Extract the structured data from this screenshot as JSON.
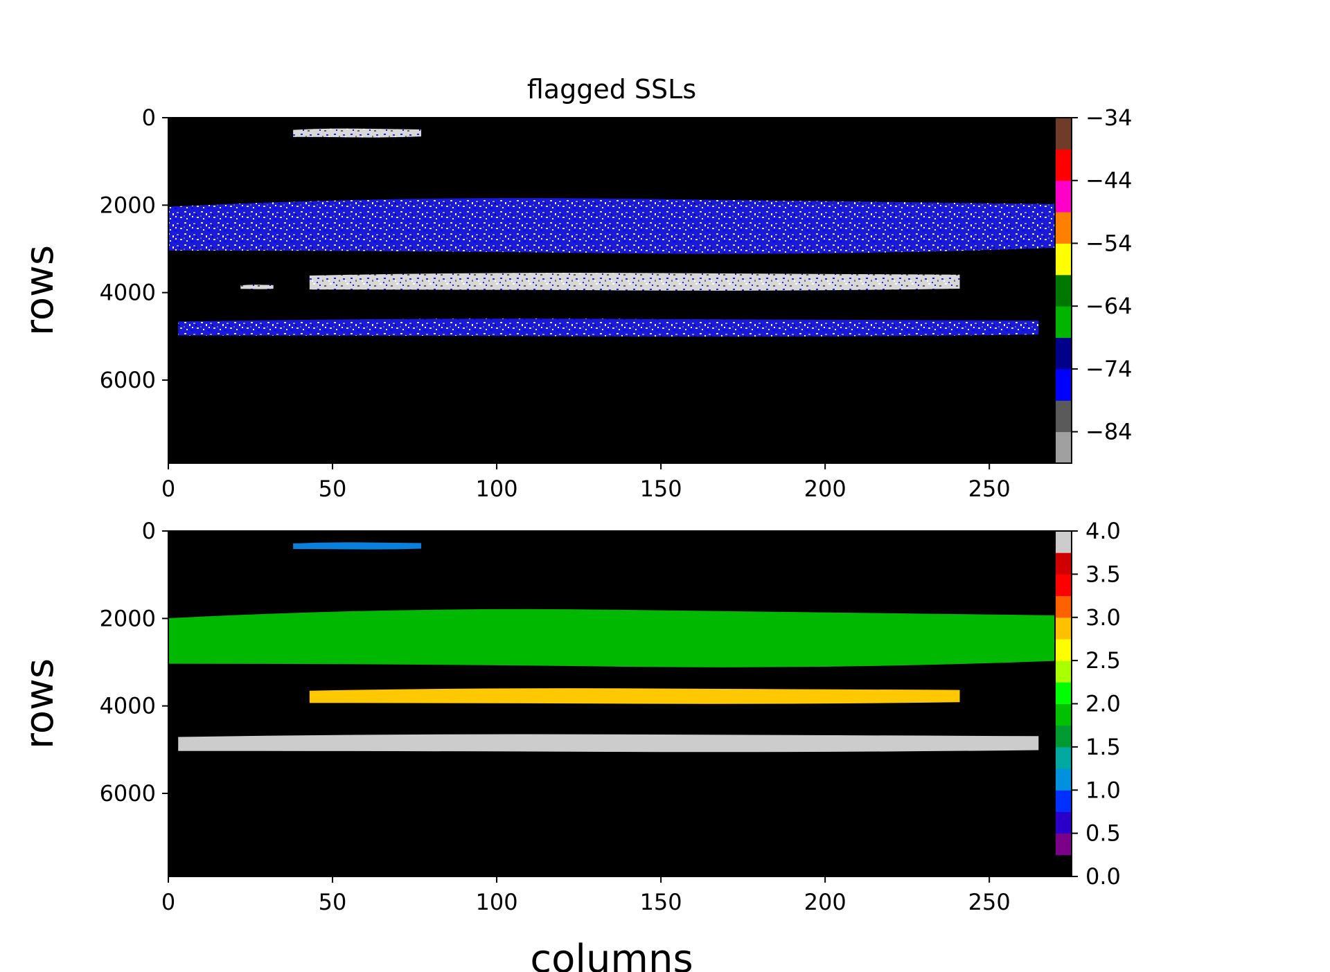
{
  "chart_data": [
    {
      "type": "heatmap",
      "title": "flagged SSLs",
      "xlabel": "",
      "ylabel": "rows",
      "xlim": [
        0,
        270
      ],
      "ylim": [
        7900,
        0
      ],
      "xticks": [
        "0",
        "50",
        "100",
        "150",
        "200",
        "250"
      ],
      "yticks": [
        "0",
        "2000",
        "4000",
        "6000"
      ],
      "background": "#000000",
      "bands": [
        {
          "x0": 38,
          "x1": 77,
          "y0": 250,
          "y1": 450,
          "texture": "speckle-white-blue"
        },
        {
          "x0": 0,
          "x1": 270,
          "y0": 1850,
          "y1": 3100,
          "texture": "speckle-blue-white"
        },
        {
          "x0": 43,
          "x1": 241,
          "y0": 3550,
          "y1": 3950,
          "texture": "speckle-white-blue"
        },
        {
          "x0": 22,
          "x1": 32,
          "y0": 3820,
          "y1": 3920,
          "texture": "speckle-white-blue"
        },
        {
          "x0": 3,
          "x1": 265,
          "y0": 4600,
          "y1": 5000,
          "texture": "speckle-blue-white"
        }
      ],
      "colorbar": {
        "ticks": [
          "−34",
          "−44",
          "−54",
          "−64",
          "−74",
          "−84"
        ],
        "range": [
          -89,
          -34
        ],
        "colors": [
          "#a0a0a0",
          "#5a5a5a",
          "#0000ff",
          "#00008b",
          "#00b400",
          "#007800",
          "#ffff00",
          "#ff8000",
          "#ff00c8",
          "#ff0000",
          "#6e3c28"
        ]
      }
    },
    {
      "type": "heatmap",
      "title": "",
      "xlabel": "columns",
      "ylabel": "rows",
      "xlim": [
        0,
        270
      ],
      "ylim": [
        7900,
        0
      ],
      "xticks": [
        "0",
        "50",
        "100",
        "150",
        "200",
        "250"
      ],
      "yticks": [
        "0",
        "2000",
        "4000",
        "6000"
      ],
      "background": "#000000",
      "bands": [
        {
          "x0": 38,
          "x1": 77,
          "y0": 260,
          "y1": 420,
          "value": 1.0,
          "color": "#0a7fdc"
        },
        {
          "x0": 0,
          "x1": 270,
          "y0": 1800,
          "y1": 3100,
          "value": 2.0,
          "color": "#00b800"
        },
        {
          "x0": 43,
          "x1": 241,
          "y0": 3600,
          "y1": 3950,
          "value": 3.0,
          "color": "#ffc800"
        },
        {
          "x0": 3,
          "x1": 265,
          "y0": 4650,
          "y1": 5050,
          "value": 4.0,
          "color": "#cccccc"
        }
      ],
      "colorbar": {
        "ticks": [
          "4.0",
          "3.5",
          "3.0",
          "2.5",
          "2.0",
          "1.5",
          "1.0",
          "0.5",
          "0.0"
        ],
        "range": [
          0,
          4
        ],
        "colors": [
          "#000000",
          "#7a0088",
          "#2a00c8",
          "#0030ff",
          "#0090dd",
          "#00a8a0",
          "#009a30",
          "#00c000",
          "#00ff00",
          "#aaff00",
          "#ffff00",
          "#ffc000",
          "#ff6000",
          "#ff0000",
          "#d00000",
          "#cccccc"
        ]
      }
    }
  ]
}
